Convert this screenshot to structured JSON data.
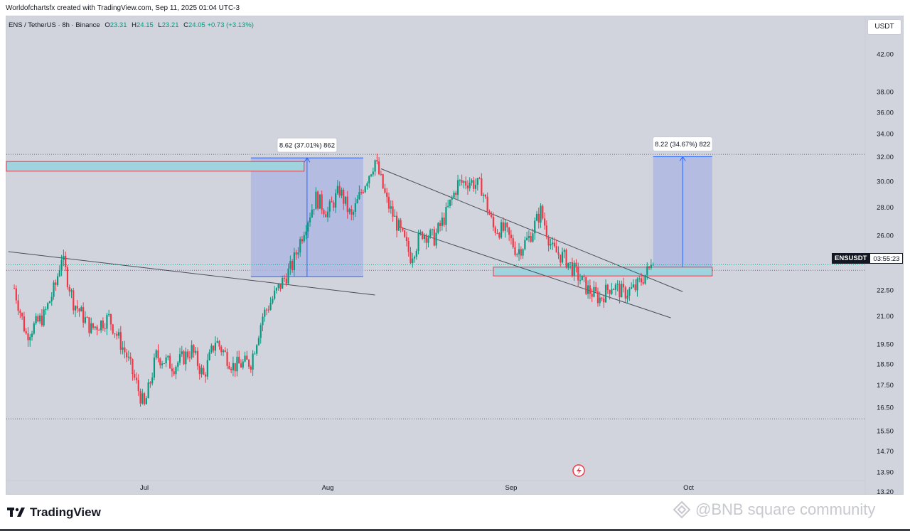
{
  "header": {
    "caption": "Worldofchartsfx created with TradingView.com, Sep 11, 2025 01:04 UTC-3"
  },
  "symbol_bar": {
    "symbol": "ENS / TetherUS · 8h · Binance",
    "o_label": "O",
    "o_value": "23.31",
    "h_label": "H",
    "h_value": "24.15",
    "l_label": "L",
    "l_value": "23.21",
    "c_label": "C",
    "c_value": "24.05",
    "change": "+0.73 (+3.13%)"
  },
  "currency_button": {
    "label": "USDT"
  },
  "price_tag": {
    "symbol": "ENSUSDT",
    "countdown": "03:55:23"
  },
  "footer": {
    "logo_text": "TradingView",
    "watermark": "@BNB square community"
  },
  "colors": {
    "background": "#d1d4dc",
    "up": "#089981",
    "down": "#f23645",
    "zone_fill": "#9fd3dd",
    "zone_border": "#f23645",
    "measure_fill": "#aab6e3",
    "measure_line": "#2962ff",
    "trendline": "#4a4e5a"
  },
  "chart_data": {
    "type": "candlestick",
    "title": "",
    "xlabel": "",
    "ylabel": "",
    "y_scale": "log",
    "y_ticks": [
      "42.00",
      "38.00",
      "36.00",
      "34.00",
      "32.00",
      "30.00",
      "28.00",
      "26.00",
      "22.50",
      "21.00",
      "19.50",
      "18.50",
      "17.50",
      "16.50",
      "15.50",
      "14.70",
      "13.90",
      "13.20"
    ],
    "x_ticks": [
      "Jul",
      "Aug",
      "Sep",
      "Oct"
    ],
    "grid": false,
    "last_price": 24.05,
    "price_path": [
      {
        "t": "Jun 09",
        "p": 22.6
      },
      {
        "t": "Jun 11",
        "p": 20.0
      },
      {
        "t": "Jun 14",
        "p": 21.0
      },
      {
        "t": "Jun 16",
        "p": 22.8
      },
      {
        "t": "Jun 17",
        "p": 24.6
      },
      {
        "t": "Jun 19",
        "p": 21.8
      },
      {
        "t": "Jun 22",
        "p": 20.3
      },
      {
        "t": "Jun 25",
        "p": 20.9
      },
      {
        "t": "Jun 28",
        "p": 18.9
      },
      {
        "t": "Jul 01",
        "p": 16.5
      },
      {
        "t": "Jul 03",
        "p": 18.9
      },
      {
        "t": "Jul 06",
        "p": 18.4
      },
      {
        "t": "Jul 09",
        "p": 19.2
      },
      {
        "t": "Jul 11",
        "p": 17.9
      },
      {
        "t": "Jul 13",
        "p": 19.7
      },
      {
        "t": "Jul 16",
        "p": 18.4
      },
      {
        "t": "Jul 19",
        "p": 18.6
      },
      {
        "t": "Jul 21",
        "p": 21.0
      },
      {
        "t": "Jul 24",
        "p": 22.8
      },
      {
        "t": "Jul 26",
        "p": 24.0
      },
      {
        "t": "Jul 28",
        "p": 26.5
      },
      {
        "t": "Jul 30",
        "p": 28.7
      },
      {
        "t": "Aug 01",
        "p": 27.6
      },
      {
        "t": "Aug 03",
        "p": 29.3
      },
      {
        "t": "Aug 05",
        "p": 27.2
      },
      {
        "t": "Aug 07",
        "p": 29.6
      },
      {
        "t": "Aug 09",
        "p": 31.7
      },
      {
        "t": "Aug 11",
        "p": 28.4
      },
      {
        "t": "Aug 13",
        "p": 26.5
      },
      {
        "t": "Aug 15",
        "p": 24.6
      },
      {
        "t": "Aug 17",
        "p": 26.2
      },
      {
        "t": "Aug 19",
        "p": 25.8
      },
      {
        "t": "Aug 21",
        "p": 27.5
      },
      {
        "t": "Aug 23",
        "p": 29.8
      },
      {
        "t": "Aug 25",
        "p": 30.0
      },
      {
        "t": "Aug 27",
        "p": 29.5
      },
      {
        "t": "Aug 29",
        "p": 26.5
      },
      {
        "t": "Aug 31",
        "p": 26.3
      },
      {
        "t": "Sep 02",
        "p": 24.9
      },
      {
        "t": "Sep 04",
        "p": 25.8
      },
      {
        "t": "Sep 06",
        "p": 27.7
      },
      {
        "t": "Sep 08",
        "p": 25.0
      },
      {
        "t": "Sep 10",
        "p": 24.5
      },
      {
        "t": "Sep 12",
        "p": 23.5
      },
      {
        "t": "Sep 14",
        "p": 22.5
      },
      {
        "t": "Sep 16",
        "p": 22.0
      },
      {
        "t": "Sep 18",
        "p": 22.8
      },
      {
        "t": "Sep 20",
        "p": 22.3
      },
      {
        "t": "Sep 22",
        "p": 22.6
      },
      {
        "t": "Sep 24",
        "p": 23.6
      },
      {
        "t": "Sep 25",
        "p": 24.05
      }
    ],
    "zones": [
      {
        "name": "resistance-zone",
        "from": 30.8,
        "to": 31.6
      },
      {
        "name": "support-zone",
        "from": 23.35,
        "to": 23.9
      }
    ],
    "horizontal_levels": [
      32.2,
      23.7,
      16.0
    ],
    "measures": [
      {
        "label": "8.62 (37.01%) 862",
        "from": 23.3,
        "to": 31.9
      },
      {
        "label": "8.22 (34.67%) 822",
        "from": 23.8,
        "to": 32.0
      }
    ]
  }
}
